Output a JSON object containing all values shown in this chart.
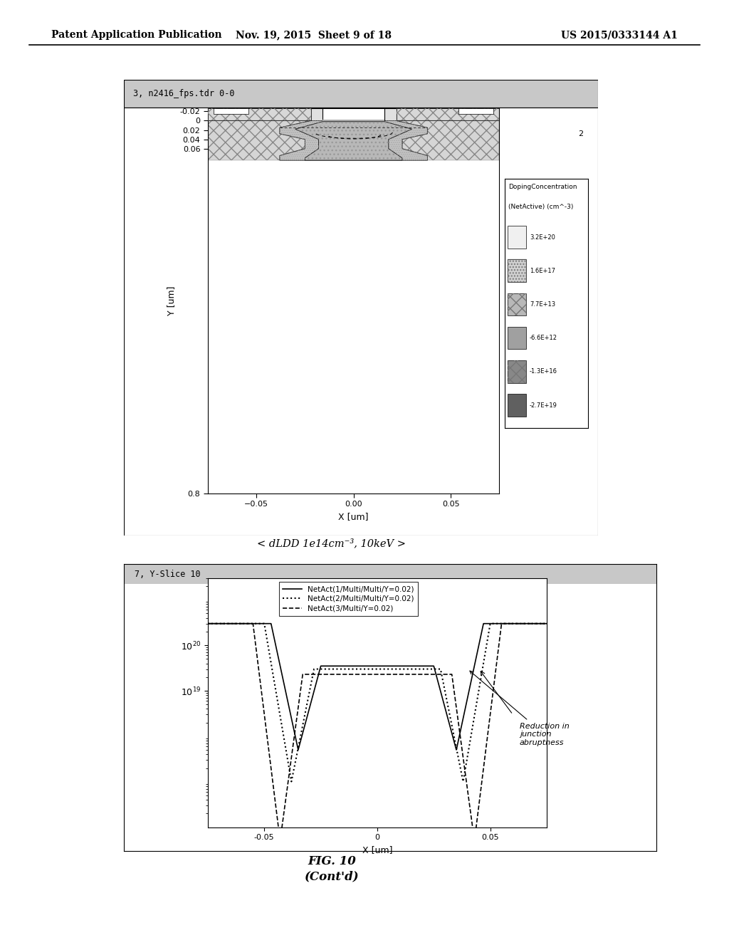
{
  "header_left": "Patent Application Publication",
  "header_mid": "Nov. 19, 2015  Sheet 9 of 18",
  "header_right": "US 2015/0333144 A1",
  "fig1_title": "3, n2416_fps.tdr 0-0",
  "fig1_xlabel": "X [um]",
  "fig1_ylabel": "Y [um]",
  "fig1_yticks_vals": [
    -0.02,
    0.0,
    0.02,
    0.04,
    0.06,
    0.8
  ],
  "fig1_yticks_labels": [
    "-0.02",
    "0",
    "0.02",
    "0.04",
    "0.06",
    "0.8"
  ],
  "fig1_xticks": [
    -0.05,
    0,
    0.05
  ],
  "fig1_legend_title1": "DopingConcentration",
  "fig1_legend_title2": "(NetActive) (cm^-3)",
  "fig1_legend_entries": [
    "3.2E+20",
    "1.6E+17",
    "7.7E+13",
    "-6.6E+12",
    "-1.3E+16",
    "-2.7E+19"
  ],
  "caption1": "< dLDD 1e14cm⁻³, 10keV >",
  "fig2_title": "7, Y-Slice 10",
  "fig2_xlabel": "X [um]",
  "fig2_xticks": [
    -0.05,
    0,
    0.05
  ],
  "fig2_legend": [
    "NetAct(1/Multi/Multi/Y=0.02)",
    "NetAct(2/Multi/Multi/Y=0.02)",
    "NetAct(3/Multi/Y=0.02)"
  ],
  "fig2_annotation": "Reduction in\njunction\nabruptness",
  "fig_caption_line1": "FIG. 10",
  "fig_caption_line2": "(Cont'd)",
  "bg_color": "#ffffff"
}
